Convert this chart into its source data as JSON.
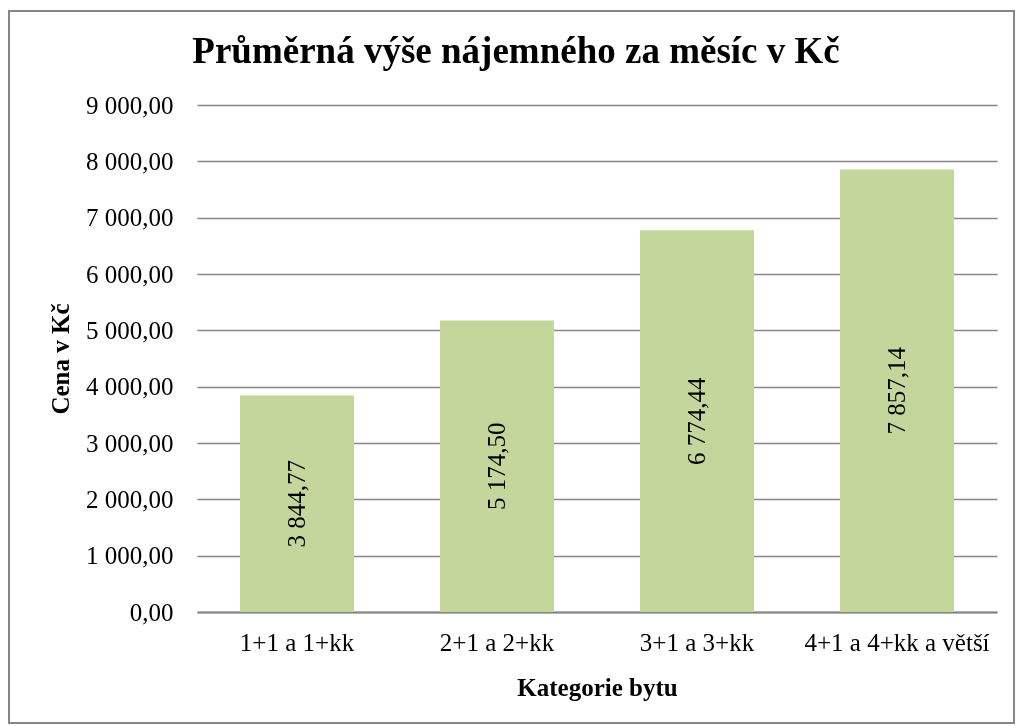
{
  "chart_data": {
    "type": "bar",
    "title": "Průměrná výše nájemného za měsíc v Kč",
    "xlabel": "Kategorie bytu",
    "ylabel": "Cena v Kč",
    "categories": [
      "1+1 a 1+kk",
      "2+1 a 2+kk",
      "3+1 a 3+kk",
      "4+1 a 4+kk a větší"
    ],
    "values": [
      3844.77,
      5174.5,
      6774.44,
      7857.14
    ],
    "value_labels": [
      "3 844,77",
      "5 174,50",
      "6 774,44",
      "7 857,14"
    ],
    "color": "#c3d69b",
    "ylim": [
      0,
      9000
    ],
    "yticks": [
      {
        "value": 0,
        "label": "0,00"
      },
      {
        "value": 1000,
        "label": "1 000,00"
      },
      {
        "value": 2000,
        "label": "2 000,00"
      },
      {
        "value": 3000,
        "label": "3 000,00"
      },
      {
        "value": 4000,
        "label": "4 000,00"
      },
      {
        "value": 5000,
        "label": "5 000,00"
      },
      {
        "value": 6000,
        "label": "6 000,00"
      },
      {
        "value": 7000,
        "label": "7 000,00"
      },
      {
        "value": 8000,
        "label": "8 000,00"
      },
      {
        "value": 9000,
        "label": "9 000,00"
      }
    ],
    "grid": "y"
  }
}
